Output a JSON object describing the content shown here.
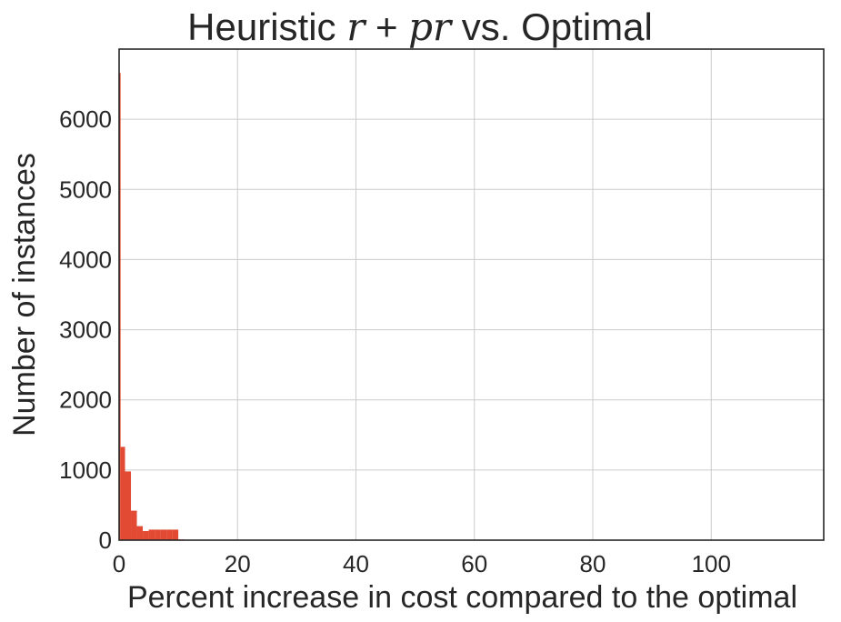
{
  "chart_data": {
    "type": "bar",
    "title_parts": [
      "Heuristic ",
      "r",
      " + ",
      "pr",
      " vs. Optimal"
    ],
    "xlabel": "Percent increase in cost compared to the optimal",
    "ylabel": "Number of instances",
    "xlim": [
      0,
      119
    ],
    "ylim": [
      0,
      7000
    ],
    "xticks": [
      0,
      20,
      40,
      60,
      80,
      100
    ],
    "yticks": [
      0,
      1000,
      2000,
      3000,
      4000,
      5000,
      6000
    ],
    "grid": true,
    "bar_color": "#e24a33",
    "bins": [
      {
        "x0": 0.0,
        "x1": 0.25,
        "count": 6660
      },
      {
        "x0": 0.25,
        "x1": 1.0,
        "count": 1330
      },
      {
        "x0": 1.0,
        "x1": 2.0,
        "count": 980
      },
      {
        "x0": 2.0,
        "x1": 3.0,
        "count": 420
      },
      {
        "x0": 3.0,
        "x1": 4.0,
        "count": 200
      },
      {
        "x0": 4.0,
        "x1": 5.0,
        "count": 130
      },
      {
        "x0": 5.0,
        "x1": 6.0,
        "count": 150
      },
      {
        "x0": 6.0,
        "x1": 7.0,
        "count": 150
      },
      {
        "x0": 7.0,
        "x1": 8.0,
        "count": 150
      },
      {
        "x0": 8.0,
        "x1": 9.0,
        "count": 150
      },
      {
        "x0": 9.0,
        "x1": 10.0,
        "count": 150
      },
      {
        "x0": 10.0,
        "x1": 11.0,
        "count": 10
      },
      {
        "x0": 11.0,
        "x1": 12.0,
        "count": 5
      },
      {
        "x0": 12.0,
        "x1": 13.0,
        "count": 3
      },
      {
        "x0": 13.0,
        "x1": 14.0,
        "count": 2
      }
    ]
  }
}
